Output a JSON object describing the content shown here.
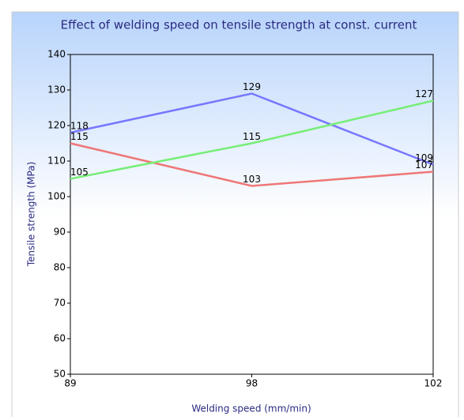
{
  "chart_data": {
    "type": "line",
    "title": "Effect of welding speed on tensile strength at const. current",
    "x_label": "Welding speed (mm/min)",
    "y_label": "Tensile strength (MPa)",
    "categories": [
      "89",
      "98",
      "102"
    ],
    "series": [
      {
        "color": "#7777ff",
        "values": [
          118,
          129,
          109
        ]
      },
      {
        "color": "#ee7777",
        "values": [
          115,
          103,
          107
        ]
      },
      {
        "color": "#77ee77",
        "values": [
          105,
          115,
          127
        ]
      }
    ],
    "ylim": [
      50,
      140
    ],
    "yticks": [
      50,
      60,
      70,
      80,
      90,
      100,
      110,
      120,
      130,
      140
    ]
  }
}
